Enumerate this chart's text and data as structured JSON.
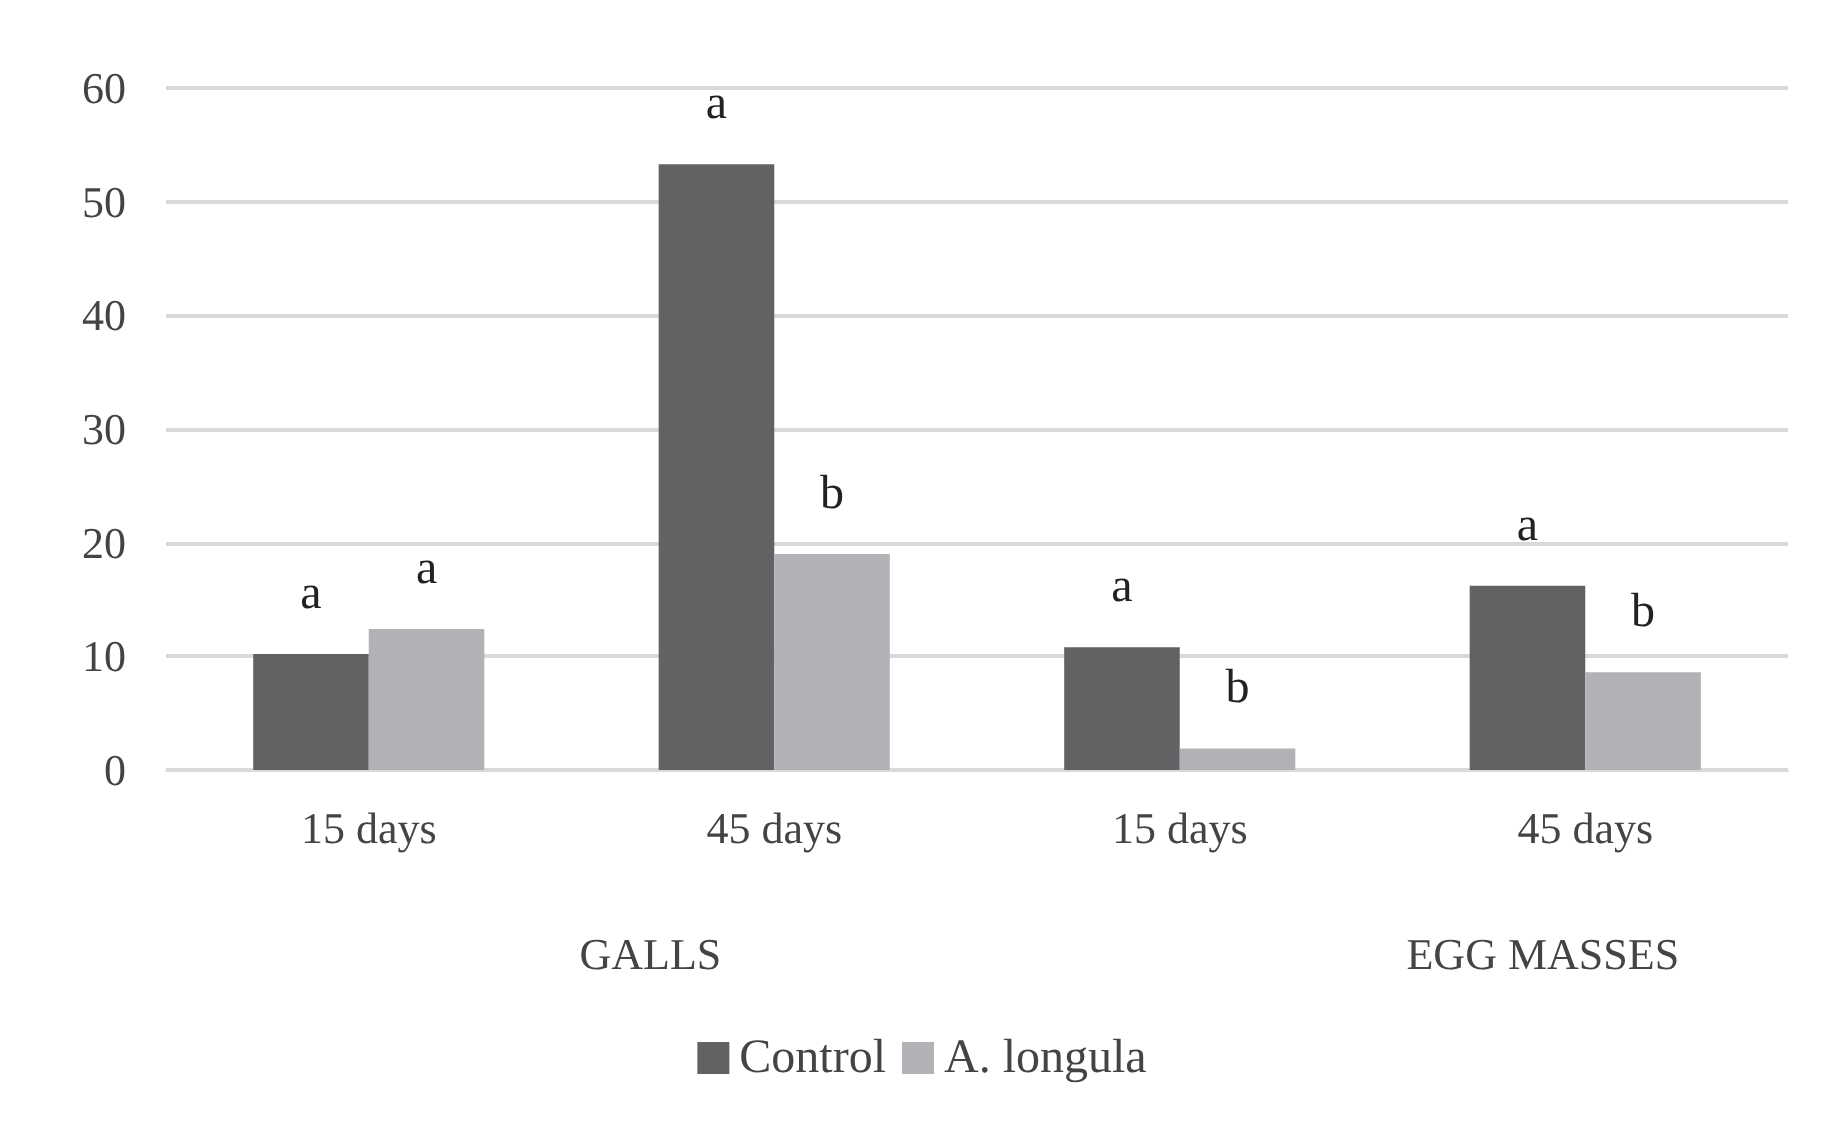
{
  "chart_data": {
    "type": "bar",
    "categories": [
      "15 days",
      "45 days",
      "15 days",
      "45 days"
    ],
    "series": [
      {
        "name": "Control",
        "color": "#626264",
        "values": [
          10.2,
          53.3,
          10.8,
          16.2
        ],
        "value_labels": [
          "a",
          "a",
          "a",
          "a"
        ]
      },
      {
        "name": "A. longula",
        "color": "#b1b2b5",
        "values": [
          12.4,
          19.0,
          1.9,
          8.6
        ],
        "value_labels": [
          "a",
          "b",
          "b",
          "b"
        ]
      }
    ],
    "annotations": [
      "GALLS",
      "EGG MASSES"
    ],
    "ylim": [
      0,
      60
    ],
    "yticks": [
      0,
      10,
      20,
      30,
      40,
      50,
      60
    ],
    "grid": "y",
    "legend": "bottom"
  }
}
